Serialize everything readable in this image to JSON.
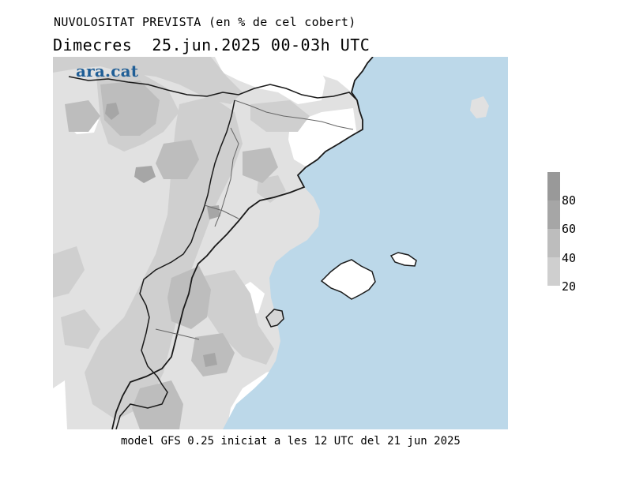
{
  "header": {
    "title": "NUVOLOSITAT PREVISTA (en % de cel cobert)",
    "subtitle": "Dimecres  25.jun.2025 00-03h UTC"
  },
  "map": {
    "logo_text": "ara.cat",
    "sea_color": "#bcd8e9",
    "land_clear_color": "#ffffff",
    "coast_color": "#1a1a1a",
    "border_color": "#555555"
  },
  "legend": {
    "labels": [
      "80",
      "60",
      "40",
      "20"
    ],
    "colors": [
      "#a6a6a6",
      "#bdbdbd",
      "#cfcfcf",
      "#e1e1e1"
    ]
  },
  "footer": {
    "model_text": "model GFS 0.25 iniciat a les 12 UTC del 21 jun 2025"
  }
}
